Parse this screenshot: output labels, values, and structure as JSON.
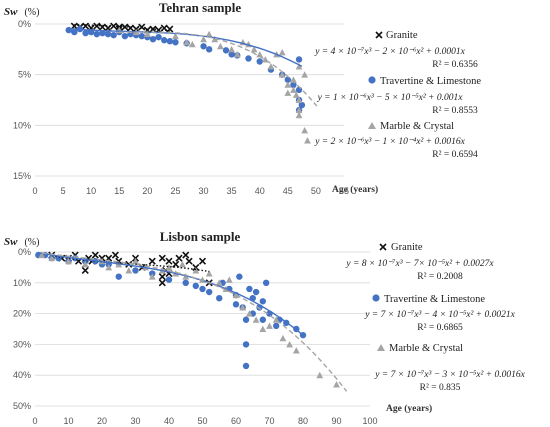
{
  "chart_data": [
    {
      "type": "scatter",
      "title": "Tehran sample",
      "ylabel_symbol": "Sw",
      "ylabel_unit": "(%)",
      "xlabel": "Age (years)",
      "xlim": [
        0,
        55
      ],
      "ylim": [
        0,
        15
      ],
      "y_inverted": true,
      "grid": "horizontal",
      "xticks": [
        "0",
        "5",
        "10",
        "15",
        "20",
        "25",
        "30",
        "35",
        "40",
        "45",
        "50",
        "55"
      ],
      "yticks": [
        "0%",
        "5%",
        "10%",
        "15%"
      ],
      "series": [
        {
          "name": "Granite",
          "marker": "x",
          "color": "#111111",
          "points": [
            [
              7,
              0.2
            ],
            [
              8,
              0.3
            ],
            [
              9,
              0.2
            ],
            [
              10,
              0.4
            ],
            [
              11,
              0.2
            ],
            [
              12,
              0.3
            ],
            [
              13,
              0.4
            ],
            [
              14,
              0.2
            ],
            [
              15,
              0.3
            ],
            [
              15,
              0.5
            ],
            [
              16,
              0.3
            ],
            [
              17,
              0.4
            ],
            [
              18,
              0.5
            ],
            [
              19,
              0.3
            ],
            [
              20,
              0.6
            ],
            [
              21,
              0.5
            ],
            [
              22,
              0.6
            ],
            [
              23,
              0.4
            ],
            [
              24,
              0.5
            ]
          ],
          "trend": {
            "equation": "y = 4 × 10⁻⁷x³ − 2 × 10⁻⁶x² + 0.0001x",
            "r2": "R² = 0.6356",
            "style": "dotted"
          }
        },
        {
          "name": "Travertine & Limestone",
          "marker": "circle",
          "color": "#4472C4",
          "points": [
            [
              6,
              0.6
            ],
            [
              7,
              0.8
            ],
            [
              8,
              0.5
            ],
            [
              9,
              0.9
            ],
            [
              10,
              0.8
            ],
            [
              11,
              1.0
            ],
            [
              12,
              0.9
            ],
            [
              13,
              1.0
            ],
            [
              14,
              1.1
            ],
            [
              15,
              0.8
            ],
            [
              16,
              1.2
            ],
            [
              17,
              1.0
            ],
            [
              18,
              1.1
            ],
            [
              19,
              1.2
            ],
            [
              20,
              1.3
            ],
            [
              21,
              1.5
            ],
            [
              22,
              1.3
            ],
            [
              23,
              1.6
            ],
            [
              24,
              1.7
            ],
            [
              25,
              1.8
            ],
            [
              27,
              1.9
            ],
            [
              30,
              2.2
            ],
            [
              31,
              2.5
            ],
            [
              34,
              2.6
            ],
            [
              35,
              3.0
            ],
            [
              36,
              3.1
            ],
            [
              38,
              3.4
            ],
            [
              40,
              3.7
            ],
            [
              42,
              4.5
            ],
            [
              44,
              5.0
            ],
            [
              45,
              5.5
            ],
            [
              46,
              6.0
            ],
            [
              47,
              6.5
            ],
            [
              47,
              7.5
            ],
            [
              47.5,
              8.0
            ],
            [
              47,
              8.5
            ],
            [
              47,
              3.5
            ]
          ],
          "trend": {
            "equation": "y = 1 × 10⁻⁶x³ − 5 × 10⁻⁵x² + 0.001x",
            "r2": "R² = 0.8553",
            "style": "solid"
          }
        },
        {
          "name": "Marble & Crystal",
          "marker": "triangle",
          "color": "#A5A5A5",
          "points": [
            [
              15,
              0.6
            ],
            [
              18,
              0.8
            ],
            [
              20,
              1.0
            ],
            [
              25,
              1.2
            ],
            [
              27,
              1.8
            ],
            [
              28,
              2.0
            ],
            [
              30,
              1.5
            ],
            [
              31,
              1.0
            ],
            [
              32,
              1.5
            ],
            [
              33,
              2.2
            ],
            [
              35,
              2.5
            ],
            [
              36,
              3.0
            ],
            [
              37,
              1.8
            ],
            [
              38,
              2.0
            ],
            [
              39,
              2.5
            ],
            [
              40,
              3.0
            ],
            [
              41,
              3.5
            ],
            [
              42,
              4.2
            ],
            [
              43,
              3.0
            ],
            [
              44,
              2.8
            ],
            [
              44,
              5.0
            ],
            [
              45,
              6.0
            ],
            [
              45,
              6.8
            ],
            [
              46,
              5.5
            ],
            [
              46,
              6.5
            ],
            [
              46.5,
              7.0
            ],
            [
              47,
              7.5
            ],
            [
              47,
              8.5
            ],
            [
              47,
              9.0
            ],
            [
              48,
              10.5
            ],
            [
              48.5,
              11.5
            ],
            [
              47,
              4.2
            ],
            [
              48,
              5.0
            ]
          ],
          "trend": {
            "equation": "y = 2 × 10⁻⁶x³ − 1 × 10⁻⁴x² + 0.0016x",
            "r2": "R² = 0.6594",
            "style": "dashed"
          }
        }
      ]
    },
    {
      "type": "scatter",
      "title": "Lisbon sample",
      "ylabel_symbol": "Sw",
      "ylabel_unit": "(%)",
      "xlabel": "Age (years)",
      "xlim": [
        0,
        100
      ],
      "ylim": [
        0,
        50
      ],
      "y_inverted": true,
      "grid": "horizontal",
      "xticks": [
        "0",
        "10",
        "20",
        "30",
        "40",
        "50",
        "60",
        "70",
        "80",
        "90",
        "100"
      ],
      "yticks": [
        "0%",
        "10%",
        "20%",
        "30%",
        "40%",
        "50%"
      ],
      "series": [
        {
          "name": "Granite",
          "marker": "x",
          "color": "#111111",
          "points": [
            [
              5,
              1
            ],
            [
              8,
              2
            ],
            [
              10,
              2
            ],
            [
              12,
              1
            ],
            [
              13,
              3
            ],
            [
              15,
              4
            ],
            [
              15,
              6
            ],
            [
              16,
              2
            ],
            [
              17,
              3
            ],
            [
              18,
              1
            ],
            [
              20,
              2
            ],
            [
              22,
              2
            ],
            [
              24,
              1
            ],
            [
              25,
              3
            ],
            [
              28,
              4
            ],
            [
              30,
              2
            ],
            [
              32,
              5
            ],
            [
              35,
              3
            ],
            [
              38,
              2
            ],
            [
              38,
              8
            ],
            [
              38,
              10
            ],
            [
              39,
              6
            ],
            [
              40,
              3
            ],
            [
              40,
              7
            ],
            [
              42,
              4
            ],
            [
              43,
              2
            ],
            [
              45,
              1
            ],
            [
              46,
              3
            ],
            [
              48,
              5
            ],
            [
              50,
              3
            ],
            [
              52,
              10
            ]
          ],
          "trend": {
            "equation": "y = 8 × 10⁻⁷x³ − 7× 10⁻⁵x² + 0.0027x",
            "r2": "R² = 0.2008",
            "style": "dotted"
          }
        },
        {
          "name": "Travertine & Limestone",
          "marker": "circle",
          "color": "#4472C4",
          "points": [
            [
              1,
              1
            ],
            [
              3,
              1
            ],
            [
              5,
              2
            ],
            [
              7,
              2
            ],
            [
              10,
              3
            ],
            [
              12,
              2
            ],
            [
              15,
              3
            ],
            [
              18,
              3
            ],
            [
              20,
              4
            ],
            [
              22,
              4
            ],
            [
              25,
              8
            ],
            [
              30,
              6
            ],
            [
              35,
              7
            ],
            [
              40,
              9
            ],
            [
              45,
              10
            ],
            [
              48,
              11
            ],
            [
              50,
              12
            ],
            [
              52,
              13
            ],
            [
              55,
              15
            ],
            [
              56,
              10
            ],
            [
              58,
              12
            ],
            [
              60,
              14
            ],
            [
              60,
              17
            ],
            [
              61,
              8
            ],
            [
              62,
              18
            ],
            [
              63,
              22
            ],
            [
              63,
              30
            ],
            [
              63,
              37
            ],
            [
              64,
              12
            ],
            [
              65,
              15
            ],
            [
              65,
              20
            ],
            [
              66,
              13
            ],
            [
              67,
              18
            ],
            [
              68,
              16
            ],
            [
              68,
              22
            ],
            [
              69,
              10
            ],
            [
              70,
              20
            ],
            [
              72,
              24
            ],
            [
              73,
              22
            ],
            [
              75,
              23
            ],
            [
              78,
              25
            ],
            [
              80,
              27
            ]
          ],
          "trend": {
            "equation": "y = 7 × 10⁻⁷x³ − 4 × 10⁻⁵x² + 0.0021x",
            "r2": "R² = 0.6865",
            "style": "solid"
          }
        },
        {
          "name": "Marble & Crystal",
          "marker": "triangle",
          "color": "#A5A5A5",
          "points": [
            [
              2,
              1
            ],
            [
              5,
              2
            ],
            [
              10,
              3
            ],
            [
              15,
              4
            ],
            [
              20,
              3
            ],
            [
              22,
              5
            ],
            [
              25,
              4
            ],
            [
              28,
              6
            ],
            [
              30,
              3
            ],
            [
              33,
              5
            ],
            [
              35,
              8
            ],
            [
              38,
              6
            ],
            [
              40,
              5
            ],
            [
              42,
              7
            ],
            [
              44,
              4
            ],
            [
              45,
              8
            ],
            [
              48,
              6
            ],
            [
              50,
              9
            ],
            [
              52,
              7
            ],
            [
              55,
              10
            ],
            [
              57,
              12
            ],
            [
              58,
              9
            ],
            [
              60,
              14
            ],
            [
              62,
              18
            ],
            [
              64,
              20
            ],
            [
              66,
              22
            ],
            [
              68,
              25
            ],
            [
              70,
              24
            ],
            [
              72,
              22
            ],
            [
              74,
              28
            ],
            [
              76,
              30
            ],
            [
              78,
              32
            ],
            [
              85,
              40
            ],
            [
              90,
              43
            ]
          ],
          "trend": {
            "equation": "y = 7 × 10⁻⁷x³ − 3 × 10⁻⁵x² + 0.0016x",
            "r2": "R² = 0.835",
            "style": "dashed"
          }
        }
      ]
    }
  ]
}
